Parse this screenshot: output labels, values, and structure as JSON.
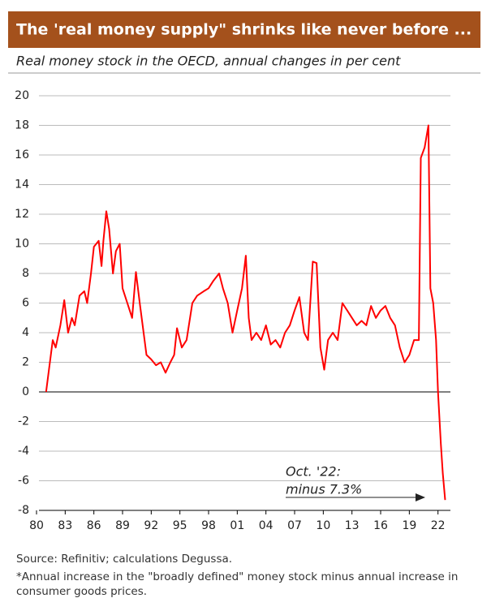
{
  "chart_data": {
    "type": "line",
    "title": "The 'real money supply\" shrinks like never before ...",
    "subtitle": "Real money stock in the OECD, annual changes in per cent",
    "annotation": [
      "Oct. '22:",
      "minus 7.3%"
    ],
    "source": "Source: Refinitiv; calculations Degussa.",
    "footnote": "*Annual increase in the \"broadly defined\" money stock minus annual increase in consumer goods prices.",
    "color": "#ff0000",
    "grid": true,
    "xlim": [
      1980,
      2023.3
    ],
    "xticks": [
      {
        "value": 1980,
        "label": "80"
      },
      {
        "value": 1983,
        "label": "83"
      },
      {
        "value": 1986,
        "label": "86"
      },
      {
        "value": 1989,
        "label": "89"
      },
      {
        "value": 1992,
        "label": "92"
      },
      {
        "value": 1995,
        "label": "95"
      },
      {
        "value": 1998,
        "label": "98"
      },
      {
        "value": 2001,
        "label": "01"
      },
      {
        "value": 2004,
        "label": "04"
      },
      {
        "value": 2007,
        "label": "07"
      },
      {
        "value": 2010,
        "label": "10"
      },
      {
        "value": 2013,
        "label": "13"
      },
      {
        "value": 2016,
        "label": "16"
      },
      {
        "value": 2019,
        "label": "19"
      },
      {
        "value": 2022,
        "label": "22"
      }
    ],
    "ylim": [
      -8,
      20
    ],
    "yticks": [
      -8,
      -6,
      -4,
      -2,
      0,
      2,
      4,
      6,
      8,
      10,
      12,
      14,
      16,
      18,
      20
    ],
    "x": [
      1981.0,
      1981.7,
      1982.0,
      1982.5,
      1982.9,
      1983.3,
      1983.7,
      1984.0,
      1984.5,
      1985.0,
      1985.3,
      1985.7,
      1986.0,
      1986.5,
      1986.8,
      1987.0,
      1987.3,
      1987.6,
      1988.0,
      1988.3,
      1988.7,
      1989.0,
      1989.5,
      1990.0,
      1990.4,
      1990.8,
      1991.5,
      1992.0,
      1992.5,
      1993.0,
      1993.5,
      1994.0,
      1994.4,
      1994.7,
      1995.2,
      1995.7,
      1996.3,
      1996.8,
      1997.5,
      1998.0,
      1998.5,
      1999.1,
      1999.5,
      2000.0,
      2000.5,
      2001.0,
      2001.5,
      2001.9,
      2002.2,
      2002.5,
      2003.0,
      2003.5,
      2004.0,
      2004.5,
      2005.0,
      2005.5,
      2006.0,
      2006.5,
      2007.0,
      2007.5,
      2008.0,
      2008.4,
      2008.9,
      2009.3,
      2009.7,
      2010.1,
      2010.5,
      2011.0,
      2011.5,
      2012.0,
      2012.5,
      2013.0,
      2013.5,
      2014.0,
      2014.5,
      2015.0,
      2015.5,
      2016.0,
      2016.5,
      2017.0,
      2017.5,
      2018.0,
      2018.5,
      2019.0,
      2019.5,
      2020.0,
      2020.2,
      2020.6,
      2021.0,
      2021.2,
      2021.5,
      2021.8,
      2022.0,
      2022.3,
      2022.5,
      2022.75
    ],
    "values": [
      0,
      3.5,
      3,
      4.5,
      6.2,
      4,
      5,
      4.5,
      6.5,
      6.8,
      6,
      8,
      9.8,
      10.2,
      8.5,
      10.2,
      12.2,
      11,
      8,
      9.5,
      10,
      7,
      6,
      5,
      8.1,
      6,
      2.5,
      2.2,
      1.8,
      2,
      1.3,
      2,
      2.5,
      4.3,
      3,
      3.5,
      6,
      6.5,
      6.8,
      7,
      7.5,
      8,
      7,
      6,
      4,
      5.5,
      7,
      9.2,
      5,
      3.5,
      4,
      3.5,
      4.5,
      3.2,
      3.5,
      3,
      4,
      4.5,
      5.5,
      6.4,
      4,
      3.5,
      8.8,
      8.7,
      3,
      1.5,
      3.5,
      4,
      3.5,
      6,
      5.5,
      5,
      4.5,
      4.8,
      4.5,
      5.8,
      5,
      5.5,
      5.8,
      5,
      4.5,
      3,
      2,
      2.5,
      3.5,
      3.5,
      15.8,
      16.5,
      18,
      7,
      6,
      3.5,
      0,
      -3.5,
      -5.5,
      -7.3
    ]
  }
}
